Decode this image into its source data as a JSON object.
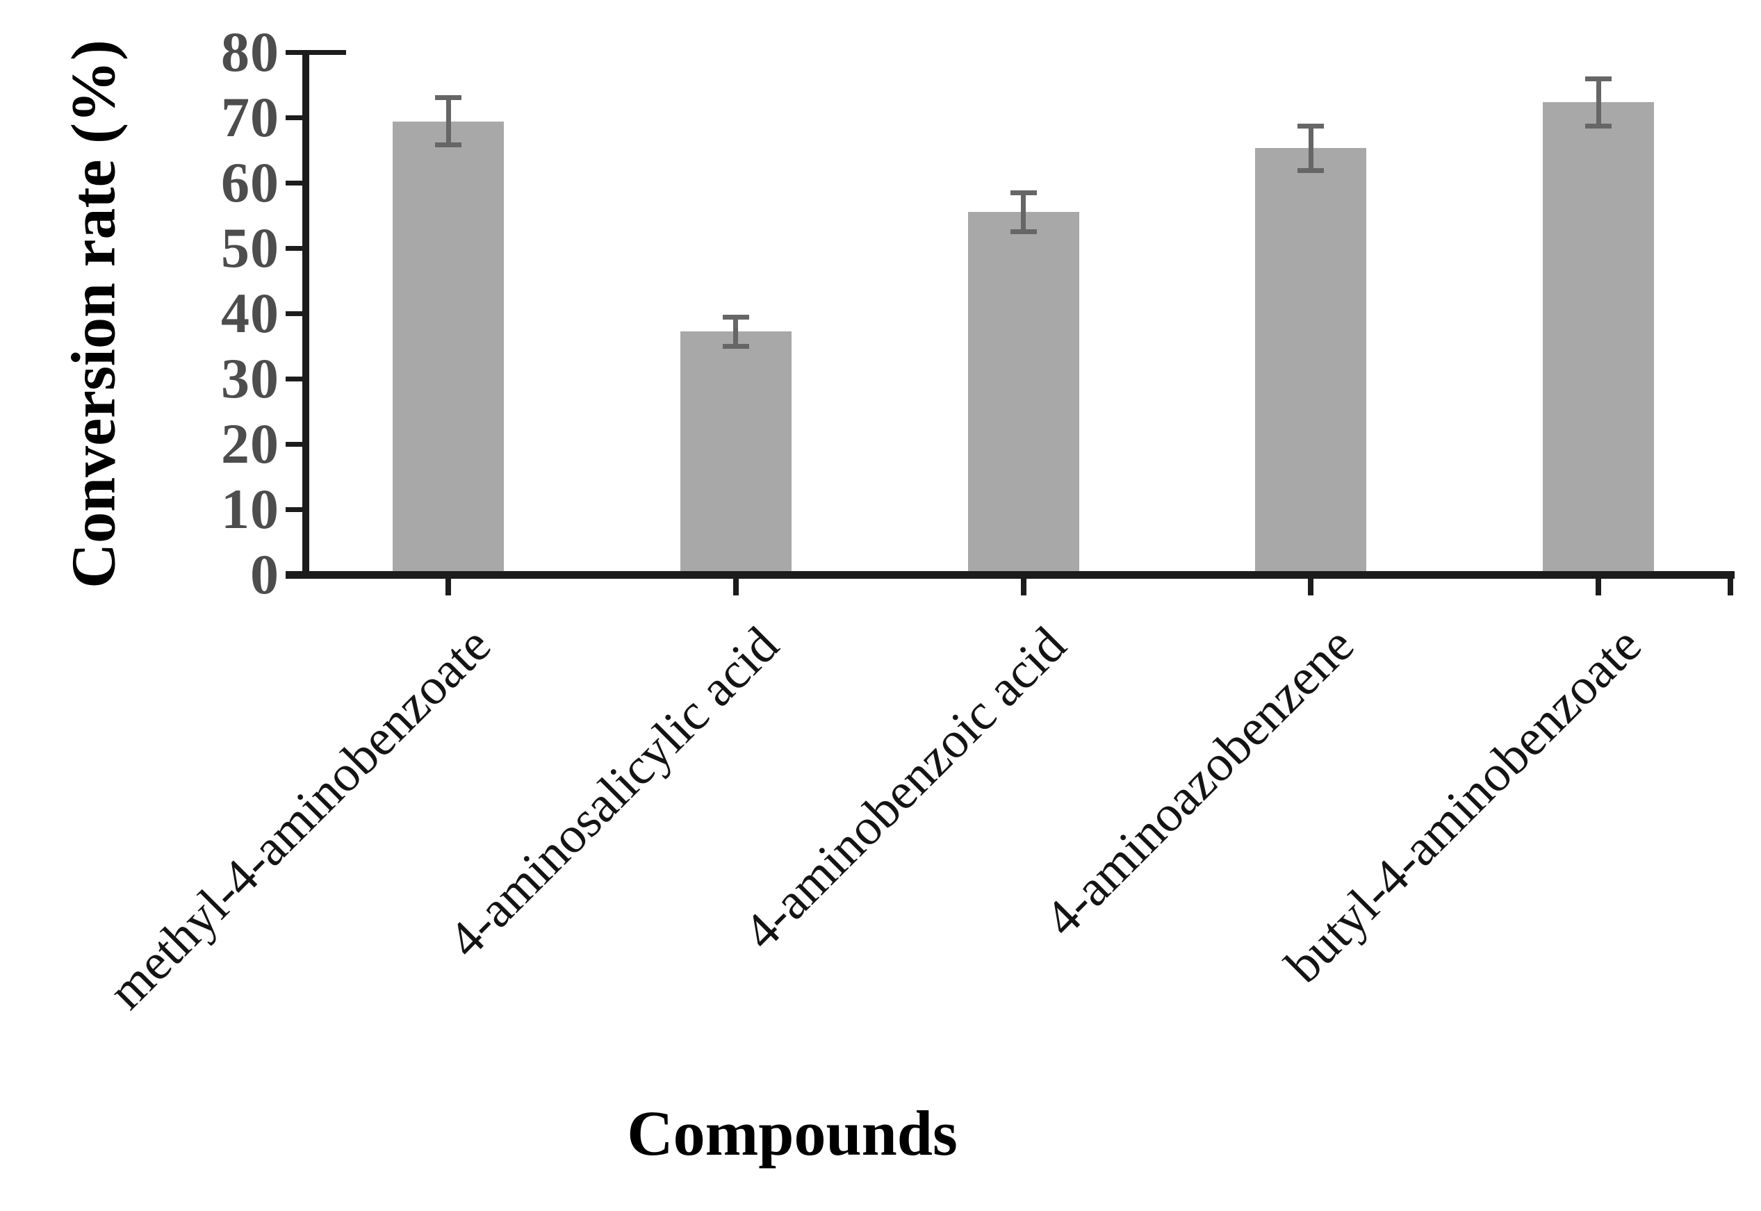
{
  "chart_data": {
    "type": "bar",
    "title": "",
    "xlabel": "Compounds",
    "ylabel": "Conversion rate (%)",
    "categories": [
      "methyl-4-aminobenzoate",
      "4-aminosalicylic acid",
      "4-aminobenzoic acid",
      "4-aminoazobenzene",
      "butyl-4-aminobenzoate"
    ],
    "values": [
      69.4,
      37.2,
      55.5,
      65.3,
      72.3
    ],
    "error_bars": [
      3.6,
      2.2,
      3.0,
      3.4,
      3.6
    ],
    "ylim": [
      0,
      80
    ],
    "yticks": [
      0,
      10,
      20,
      30,
      40,
      50,
      60,
      70,
      80
    ],
    "grid": false,
    "legend": null,
    "layout_hints": {
      "bar_orientation": "vertical",
      "error_bar_style": "capped",
      "x_label_rotation_deg": -45
    },
    "colors": {
      "bar_fill": "#a8a8a8",
      "error_bar": "#666666",
      "axis": "#1c1c1c",
      "y_tick_label": "#4d4d4d",
      "x_tick_label": "#141414",
      "axis_title": "#000000",
      "background": "#ffffff"
    }
  }
}
